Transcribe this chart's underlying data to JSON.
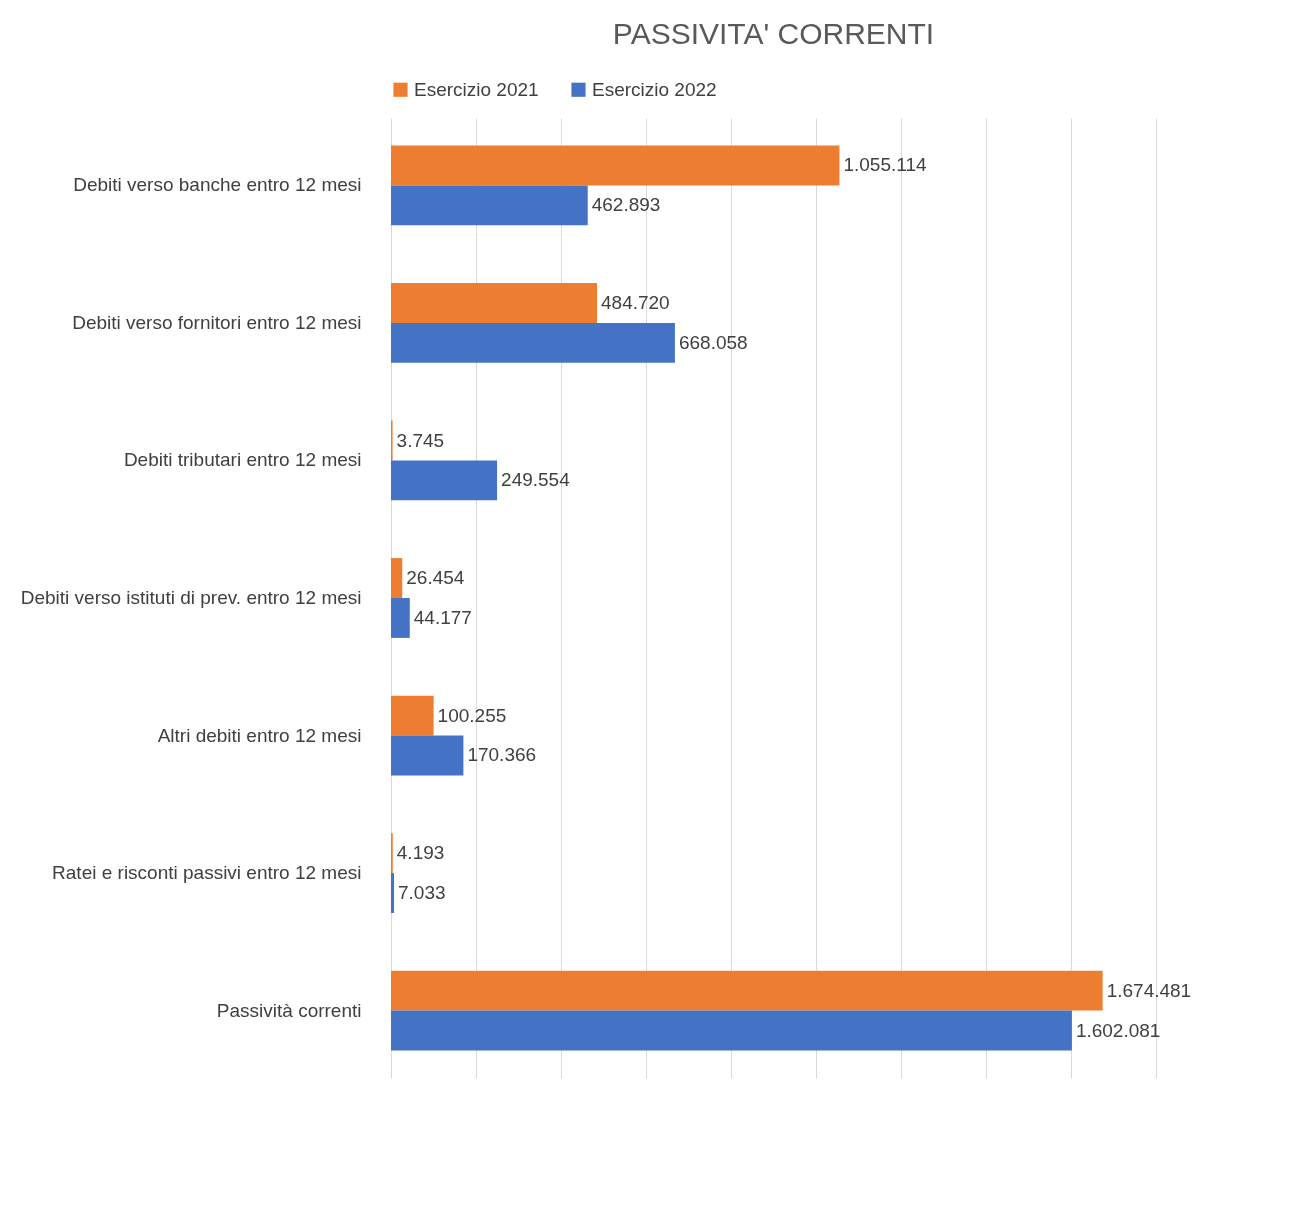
{
  "chart_data": {
    "type": "bar",
    "orientation": "horizontal",
    "title": "PASSIVITA' CORRENTI",
    "categories": [
      "Debiti verso banche entro 12 mesi",
      "Debiti verso fornitori entro 12 mesi",
      "Debiti tributari entro 12 mesi",
      "Debiti verso istituti di prev. entro 12 mesi",
      "Altri debiti entro 12 mesi",
      "Ratei e risconti passivi entro 12 mesi",
      "Passività correnti"
    ],
    "series": [
      {
        "name": "Esercizio 2021",
        "color": "#ed7d31",
        "values": [
          1055114,
          484720,
          3745,
          26454,
          100255,
          4193,
          1674481
        ],
        "value_labels": [
          "1.055.114",
          "484.720",
          "3.745",
          "26.454",
          "100.255",
          "4.193",
          "1.674.481"
        ]
      },
      {
        "name": "Esercizio 2022",
        "color": "#4472c4",
        "values": [
          462893,
          668058,
          249554,
          44177,
          170366,
          7033,
          1602081
        ],
        "value_labels": [
          "462.893",
          "668.058",
          "249.554",
          "44.177",
          "170.366",
          "7.033",
          "1.602.081"
        ]
      }
    ],
    "xlim": [
      0,
      1800000
    ],
    "xticks": [
      {
        "value": 0,
        "label": null
      },
      {
        "value": 200000,
        "label": null
      },
      {
        "value": 400000,
        "label": null
      },
      {
        "value": 600000,
        "label": null
      },
      {
        "value": 800000,
        "label": null
      },
      {
        "value": 1000000,
        "label": null
      },
      {
        "value": 1200000,
        "label": null
      },
      {
        "value": 1400000,
        "label": null
      },
      {
        "value": 1600000,
        "label": null
      },
      {
        "value": 1800000,
        "label": null
      }
    ],
    "grid": "x",
    "legend": "top"
  }
}
